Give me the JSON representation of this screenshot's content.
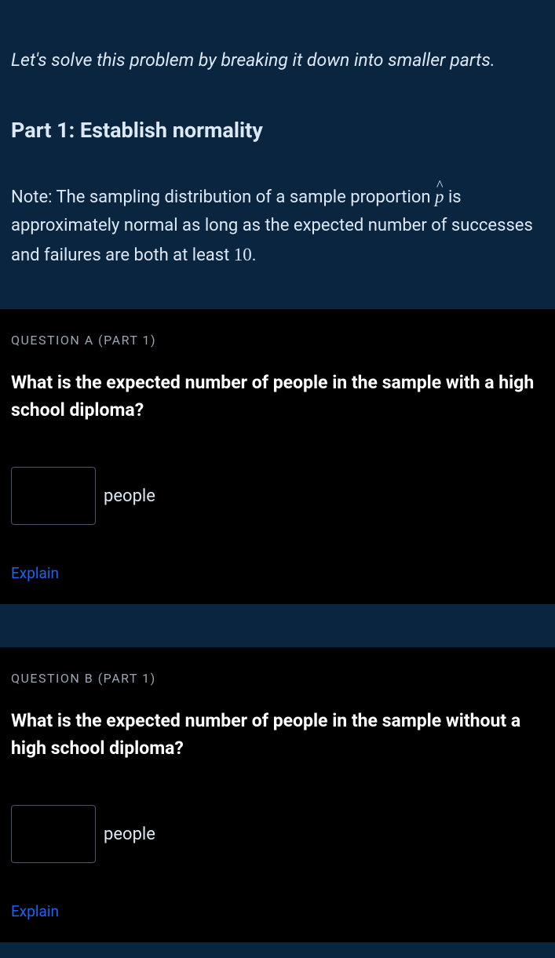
{
  "intro": {
    "text": "Let's solve this problem by breaking it down into smaller parts."
  },
  "part_heading": "Part 1: Establish normality",
  "note": {
    "prefix": "Note: The sampling distribution of a sample proportion ",
    "var": "p",
    "middle": " is approximately normal as long as the expected number of successes and failures are both at least ",
    "threshold": "10",
    "suffix": "."
  },
  "questions": [
    {
      "label": "QUESTION A (PART 1)",
      "text": "What is the expected number of people in the sample with a high school diploma?",
      "unit": "people",
      "explain": "Explain"
    },
    {
      "label": "QUESTION B (PART 1)",
      "text": "What is the expected number of people in the sample without a high school diploma?",
      "unit": "people",
      "explain": "Explain"
    }
  ],
  "colors": {
    "background": "#0a2540",
    "question_bg": "#000000",
    "text_primary": "#dde8f5",
    "text_white": "#ffffff",
    "text_muted": "#9aa5b5",
    "link": "#1865f2",
    "input_border": "#4a5568"
  }
}
